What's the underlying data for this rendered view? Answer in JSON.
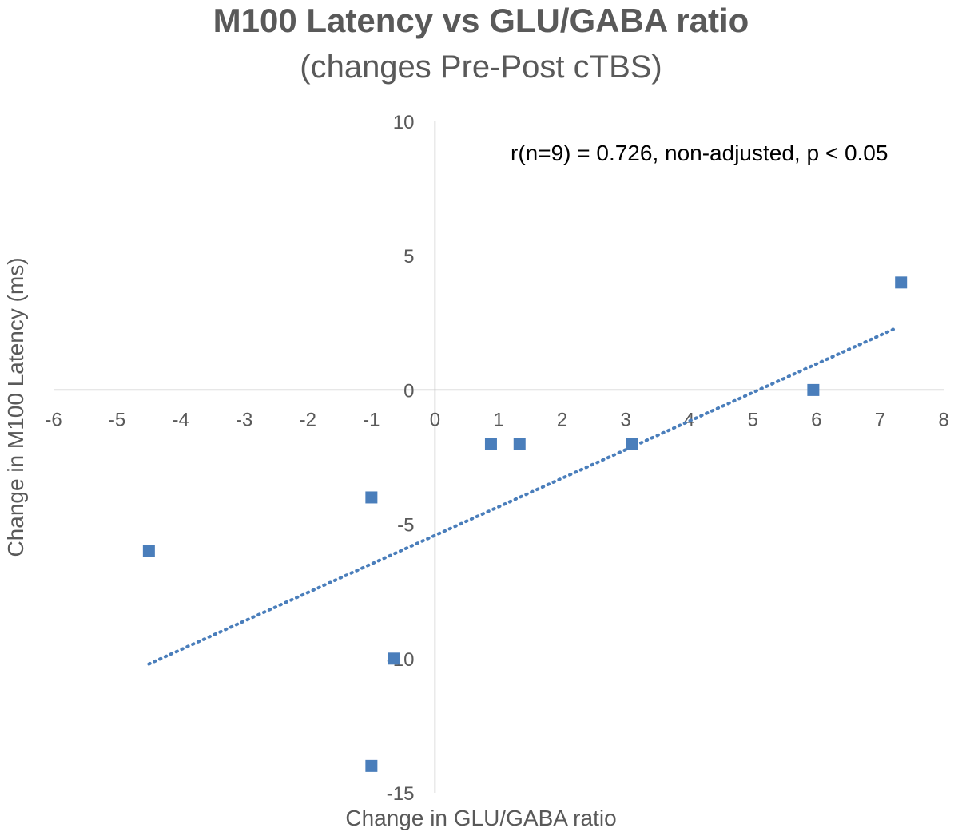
{
  "chart_data": {
    "type": "scatter",
    "title": "M100 Latency vs GLU/GABA ratio",
    "subtitle": "(changes Pre-Post cTBS)",
    "xlabel": "Change in GLU/GABA ratio",
    "ylabel": "Change in M100 Latency (ms)",
    "annotation": "r(n=9) = 0.726, non-adjusted, p < 0.05",
    "xlim": [
      -6,
      8
    ],
    "ylim": [
      -15,
      10
    ],
    "xticks": [
      -6,
      -5,
      -4,
      -3,
      -2,
      -1,
      0,
      1,
      2,
      3,
      4,
      5,
      6,
      7,
      8
    ],
    "yticks": [
      -15,
      -10,
      -5,
      0,
      5,
      10
    ],
    "grid": false,
    "legend": "none",
    "points": [
      {
        "x": -4.5,
        "y": -6
      },
      {
        "x": -1.0,
        "y": -4
      },
      {
        "x": -0.65,
        "y": -10
      },
      {
        "x": -1.0,
        "y": -14
      },
      {
        "x": 0.88,
        "y": -2
      },
      {
        "x": 1.33,
        "y": -2
      },
      {
        "x": 3.1,
        "y": -2
      },
      {
        "x": 5.95,
        "y": 0
      },
      {
        "x": 7.33,
        "y": 4
      }
    ],
    "trendline": {
      "type": "linear",
      "style": "dotted",
      "x_start": -4.5,
      "x_end": 7.25,
      "y_start": -10.2,
      "y_end": 2.3
    },
    "colors": {
      "marker": "#4a7ebb",
      "trendline": "#4a7ebb",
      "axis": "#bfbfbf",
      "text": "#595959"
    }
  }
}
